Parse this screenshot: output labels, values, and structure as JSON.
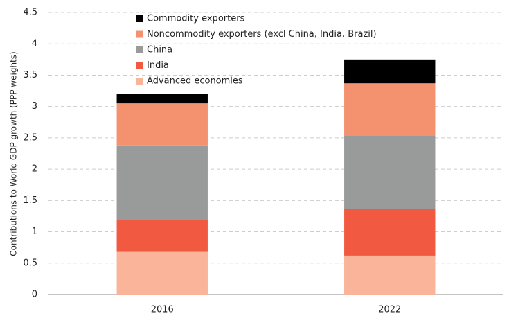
{
  "chart_data": {
    "type": "stacked_bar",
    "y_label": "Contributions to World GDP growth (PPP weights)",
    "categories": [
      "2016",
      "2022"
    ],
    "series": [
      {
        "name": "Advanced economies",
        "color": "#f9b49a",
        "values": [
          0.69,
          0.62
        ]
      },
      {
        "name": "India",
        "color": "#f15a40",
        "values": [
          0.5,
          0.74
        ]
      },
      {
        "name": "China",
        "color": "#999b9a",
        "values": [
          1.19,
          1.18
        ]
      },
      {
        "name": "Noncommodity exporters (excl China, India, Brazil)",
        "color": "#f4916f",
        "values": [
          0.67,
          0.83
        ]
      },
      {
        "name": "Commodity exporters",
        "color": "#000000",
        "values": [
          0.15,
          0.38
        ]
      }
    ],
    "ylim": [
      0,
      4.5
    ],
    "yticks": [
      0,
      0.5,
      1,
      1.5,
      2,
      2.5,
      3,
      3.5,
      4,
      4.5
    ],
    "grid": true,
    "legend": "top"
  }
}
